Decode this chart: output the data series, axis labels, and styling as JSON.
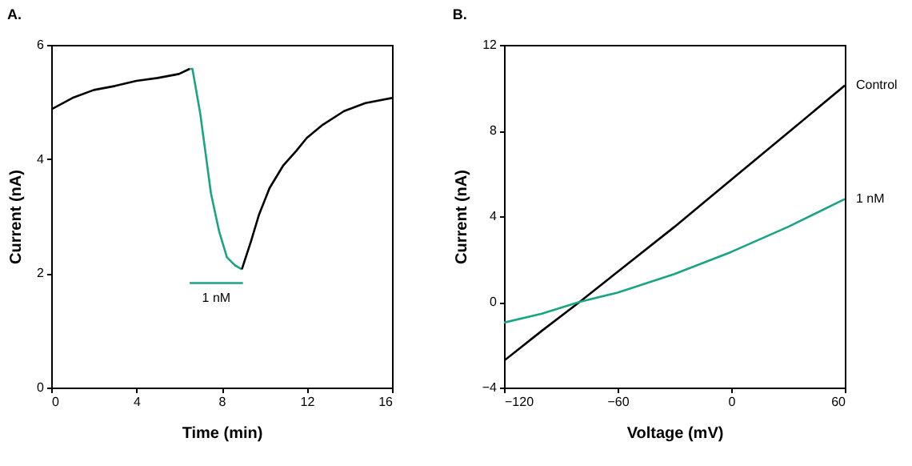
{
  "chart_data": [
    {
      "type": "line",
      "title": "A.",
      "xlabel": "Time (min)",
      "ylabel": "Current (nA)",
      "xlim": [
        0,
        16
      ],
      "xticks": [
        0,
        4,
        8,
        12,
        16
      ],
      "ylim": [
        0,
        6
      ],
      "yticks": [
        0,
        2,
        4,
        6
      ],
      "series": [
        {
          "color": "#000000",
          "x": [
            0,
            1,
            2,
            3,
            4,
            5,
            6,
            6.5
          ],
          "values": [
            4.87,
            5.07,
            5.21,
            5.28,
            5.37,
            5.42,
            5.49,
            5.58
          ]
        },
        {
          "color": "#1aa385",
          "x": [
            6.5,
            6.63,
            7.0,
            7.5,
            7.88,
            8.25,
            8.63,
            8.95
          ],
          "values": [
            5.58,
            5.58,
            4.79,
            3.4,
            2.74,
            2.28,
            2.14,
            2.07
          ]
        },
        {
          "color": "#000000",
          "x": [
            8.95,
            9.38,
            9.75,
            10.25,
            10.88,
            11.5,
            12,
            12.75,
            13.75,
            14.75,
            16
          ],
          "values": [
            2.07,
            2.56,
            3.02,
            3.49,
            3.88,
            4.14,
            4.37,
            4.6,
            4.84,
            4.98,
            5.07
          ]
        },
        {
          "color": "#1aa385",
          "x": [
            6.5,
            9
          ],
          "values": [
            1.83,
            1.83
          ]
        }
      ],
      "annotations": [
        {
          "text": "1 nM",
          "x": 7.75,
          "y": 1.83
        }
      ]
    },
    {
      "type": "line",
      "title": "B.",
      "xlabel": "Voltage (mV)",
      "ylabel": "Current (nA)",
      "xlim": [
        -120,
        60
      ],
      "xticks": [
        -120,
        -60,
        0,
        60
      ],
      "ylim": [
        -4,
        12
      ],
      "yticks": [
        -4,
        0,
        4,
        8,
        12
      ],
      "series": [
        {
          "name": "Control",
          "color": "#000000",
          "x": [
            -120,
            -100,
            -80,
            -60,
            -30,
            0,
            30,
            60
          ],
          "values": [
            -2.75,
            -1.35,
            0,
            1.4,
            3.5,
            5.7,
            7.9,
            10.1
          ]
        },
        {
          "name": "1 nM",
          "color": "#1aa385",
          "x": [
            -120,
            -100,
            -80,
            -60,
            -30,
            0,
            30,
            60
          ],
          "values": [
            -0.97,
            -0.55,
            0,
            0.43,
            1.3,
            2.33,
            3.5,
            4.8
          ]
        }
      ]
    }
  ]
}
